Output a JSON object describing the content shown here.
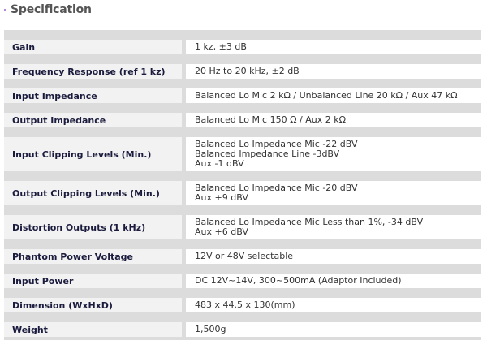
{
  "title": "Specification",
  "accent": "#b58ad8",
  "rows": [
    {
      "label": "Gain",
      "value": [
        "1 kz,  ±3 dB"
      ]
    },
    {
      "label": "Frequency Response (ref 1 kz)",
      "value": [
        "20 Hz to 20 kHz,  ±2 dB"
      ]
    },
    {
      "label": "Input Impedance",
      "value": [
        "Balanced Lo Mic 2 kΩ / Unbalanced Line 20 kΩ / Aux 47 kΩ"
      ]
    },
    {
      "label": "Output Impedance",
      "value": [
        "Balanced Lo Mic 150 Ω / Aux 2 kΩ"
      ]
    },
    {
      "label": "Input Clipping Levels (Min.)",
      "value": [
        "Balanced Lo Impedance Mic -22 dBV",
        "Balanced Impedance Line -3dBV",
        "Aux -1 dBV"
      ]
    },
    {
      "label": "Output Clipping Levels (Min.)",
      "value": [
        "Balanced Lo Impedance Mic -20 dBV",
        "Aux +9 dBV"
      ]
    },
    {
      "label": "Distortion Outputs (1 kHz)",
      "value": [
        "Balanced Lo Impedance Mic Less than 1%, -34 dBV",
        "Aux +6 dBV"
      ]
    },
    {
      "label": "Phantom Power Voltage",
      "value": [
        "12V or 48V selectable"
      ]
    },
    {
      "label": "Input Power",
      "value": [
        "DC 12V~14V, 300~500mA (Adaptor Included)"
      ]
    },
    {
      "label": "Dimension (WxHxD)",
      "value": [
        "483 x 44.5 x 130(mm)"
      ]
    },
    {
      "label": "Weight",
      "value": [
        "1,500g"
      ]
    }
  ]
}
